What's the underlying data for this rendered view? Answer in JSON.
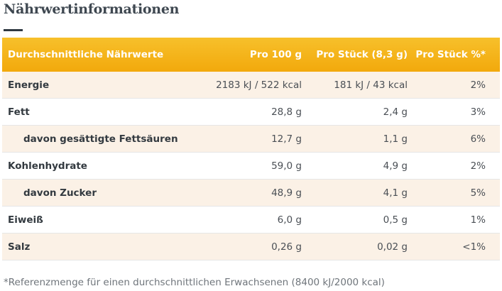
{
  "title": "Nährwertinformationen",
  "table": {
    "headers": {
      "name": "Durchschnittliche Nährwerte",
      "per100": "Pro 100 g",
      "perPiece": "Pro Stück (8,3 g)",
      "percent": "Pro Stück %*"
    },
    "rows": [
      {
        "name": "Energie",
        "per100": "2183 kJ / 522 kcal",
        "perPiece": "181 kJ / 43 kcal",
        "percent": "2%"
      },
      {
        "name": "Fett",
        "per100": "28,8 g",
        "perPiece": "2,4 g",
        "percent": "3%"
      },
      {
        "name": "davon gesättigte Fettsäuren",
        "per100": "12,7 g",
        "perPiece": "1,1 g",
        "percent": "6%"
      },
      {
        "name": "Kohlenhydrate",
        "per100": "59,0 g",
        "perPiece": "4,9 g",
        "percent": "2%"
      },
      {
        "name": "davon Zucker",
        "per100": "48,9 g",
        "perPiece": "4,1 g",
        "percent": "5%"
      },
      {
        "name": "Eiweiß",
        "per100": "6,0 g",
        "perPiece": "0,5 g",
        "percent": "1%"
      },
      {
        "name": "Salz",
        "per100": "0,26 g",
        "perPiece": "0,02 g",
        "percent": "<1%"
      }
    ]
  },
  "footnote": "*Referenzmenge für einen durchschnittlichen Erwachsenen (8400 kJ/2000 kcal)",
  "colors": {
    "header_gradient_top": "#f7c02b",
    "header_gradient_bottom": "#f2a90c",
    "row_shade": "#fbf1e6",
    "title_rule": "#2f3942"
  }
}
